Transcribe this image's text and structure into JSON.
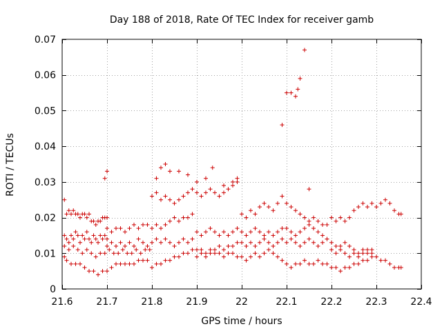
{
  "chart_data": {
    "type": "scatter",
    "title": "Day 188 of 2018, Rate Of TEC Index for receiver gamb",
    "xlabel": "GPS time / hours",
    "ylabel": "ROTI / TECUs",
    "xlim": [
      21.6,
      22.4
    ],
    "ylim": [
      0,
      0.07
    ],
    "xticks": [
      21.6,
      21.7,
      21.8,
      21.9,
      22.0,
      22.1,
      22.2,
      22.3,
      22.4
    ],
    "xtick_labels": [
      "21.6",
      "21.7",
      "21.8",
      "21.9",
      "22",
      "22.1",
      "22.2",
      "22.3",
      "22.4"
    ],
    "yticks": [
      0,
      0.01,
      0.02,
      0.03,
      0.04,
      0.05,
      0.06,
      0.07
    ],
    "ytick_labels": [
      "0",
      "0.01",
      "0.02",
      "0.03",
      "0.04",
      "0.05",
      "0.06",
      "0.07"
    ],
    "grid": true,
    "marker": "+",
    "series": [
      {
        "name": "ROTI",
        "color": "#cc0000",
        "x": [
          21.605,
          21.61,
          21.615,
          21.62,
          21.625,
          21.63,
          21.635,
          21.64,
          21.645,
          21.65,
          21.655,
          21.66,
          21.665,
          21.67,
          21.675,
          21.68,
          21.685,
          21.69,
          21.695,
          21.7,
          21.605,
          21.61,
          21.615,
          21.62,
          21.625,
          21.63,
          21.635,
          21.64,
          21.645,
          21.65,
          21.655,
          21.66,
          21.665,
          21.67,
          21.675,
          21.68,
          21.685,
          21.69,
          21.695,
          21.7,
          21.605,
          21.61,
          21.62,
          21.63,
          21.64,
          21.65,
          21.66,
          21.67,
          21.68,
          21.69,
          21.7,
          21.71,
          21.72,
          21.73,
          21.74,
          21.75,
          21.76,
          21.77,
          21.78,
          21.79,
          21.605,
          21.615,
          21.625,
          21.635,
          21.645,
          21.655,
          21.665,
          21.675,
          21.685,
          21.695,
          21.705,
          21.715,
          21.725,
          21.735,
          21.745,
          21.755,
          21.765,
          21.775,
          21.785,
          21.795,
          21.7,
          21.71,
          21.72,
          21.73,
          21.74,
          21.75,
          21.76,
          21.77,
          21.78,
          21.79,
          21.8,
          21.81,
          21.82,
          21.83,
          21.84,
          21.85,
          21.86,
          21.87,
          21.88,
          21.89,
          21.7,
          21.71,
          21.72,
          21.73,
          21.74,
          21.75,
          21.76,
          21.77,
          21.78,
          21.79,
          21.8,
          21.81,
          21.82,
          21.83,
          21.84,
          21.85,
          21.86,
          21.87,
          21.88,
          21.89,
          21.8,
          21.81,
          21.82,
          21.83,
          21.84,
          21.85,
          21.86,
          21.87,
          21.88,
          21.89,
          21.9,
          21.91,
          21.92,
          21.93,
          21.94,
          21.95,
          21.96,
          21.97,
          21.98,
          21.99,
          21.8,
          21.81,
          21.82,
          21.83,
          21.84,
          21.85,
          21.86,
          21.87,
          21.88,
          21.89,
          21.9,
          21.91,
          21.92,
          21.93,
          21.94,
          21.95,
          21.96,
          21.97,
          21.98,
          21.99,
          21.9,
          21.91,
          21.92,
          21.93,
          21.94,
          21.95,
          21.96,
          21.97,
          21.98,
          21.99,
          22.0,
          22.01,
          22.02,
          22.03,
          22.04,
          22.05,
          22.06,
          22.07,
          22.08,
          22.09,
          21.9,
          21.91,
          21.92,
          21.93,
          21.94,
          21.95,
          21.96,
          21.97,
          21.98,
          21.99,
          22.0,
          22.01,
          22.02,
          22.03,
          22.04,
          22.05,
          22.06,
          22.07,
          22.08,
          22.09,
          22.0,
          22.01,
          22.02,
          22.03,
          22.04,
          22.05,
          22.06,
          22.07,
          22.08,
          22.09,
          22.1,
          22.11,
          22.12,
          22.13,
          22.14,
          22.15,
          22.16,
          22.17,
          22.18,
          22.19,
          22.0,
          22.01,
          22.02,
          22.03,
          22.04,
          22.05,
          22.06,
          22.07,
          22.08,
          22.09,
          22.1,
          22.11,
          22.12,
          22.13,
          22.14,
          22.15,
          22.16,
          22.17,
          22.18,
          22.19,
          22.1,
          22.11,
          22.12,
          22.13,
          22.14,
          22.15,
          22.16,
          22.17,
          22.18,
          22.19,
          22.2,
          22.21,
          22.22,
          22.23,
          22.24,
          22.25,
          22.26,
          22.27,
          22.28,
          22.29,
          22.1,
          22.11,
          22.12,
          22.13,
          22.14,
          22.15,
          22.16,
          22.17,
          22.18,
          22.19,
          22.2,
          22.21,
          22.22,
          22.23,
          22.24,
          22.25,
          22.26,
          22.27,
          22.28,
          22.29,
          22.2,
          22.21,
          22.22,
          22.23,
          22.24,
          22.25,
          22.26,
          22.27,
          22.28,
          22.29,
          22.3,
          22.31,
          22.32,
          22.33,
          22.34,
          22.35,
          22.355,
          22.2,
          22.21,
          22.22,
          22.23,
          22.24,
          22.25,
          22.26,
          22.27,
          22.28,
          22.29,
          22.3,
          22.31,
          22.32,
          22.33,
          22.34,
          22.35,
          22.355,
          21.695,
          21.7,
          21.81,
          21.82,
          21.83,
          21.84,
          21.86,
          21.88,
          21.9,
          21.92,
          21.935,
          21.96,
          21.98,
          21.99,
          22.09,
          22.1,
          22.11,
          22.12,
          22.125,
          22.13,
          22.14,
          22.15
        ],
        "y": [
          0.025,
          0.021,
          0.022,
          0.021,
          0.022,
          0.021,
          0.021,
          0.02,
          0.021,
          0.021,
          0.02,
          0.021,
          0.019,
          0.019,
          0.018,
          0.019,
          0.019,
          0.02,
          0.02,
          0.02,
          0.015,
          0.014,
          0.013,
          0.015,
          0.014,
          0.016,
          0.015,
          0.013,
          0.015,
          0.014,
          0.016,
          0.014,
          0.013,
          0.015,
          0.014,
          0.013,
          0.015,
          0.014,
          0.015,
          0.014,
          0.009,
          0.008,
          0.007,
          0.007,
          0.007,
          0.006,
          0.005,
          0.005,
          0.004,
          0.005,
          0.005,
          0.006,
          0.007,
          0.007,
          0.007,
          0.007,
          0.007,
          0.008,
          0.008,
          0.008,
          0.012,
          0.011,
          0.012,
          0.011,
          0.01,
          0.011,
          0.01,
          0.009,
          0.01,
          0.01,
          0.011,
          0.01,
          0.01,
          0.011,
          0.01,
          0.01,
          0.011,
          0.01,
          0.011,
          0.011,
          0.017,
          0.016,
          0.017,
          0.017,
          0.016,
          0.017,
          0.018,
          0.017,
          0.018,
          0.018,
          0.017,
          0.018,
          0.017,
          0.018,
          0.019,
          0.02,
          0.019,
          0.02,
          0.02,
          0.021,
          0.012,
          0.013,
          0.012,
          0.013,
          0.012,
          0.013,
          0.012,
          0.014,
          0.013,
          0.012,
          0.013,
          0.014,
          0.013,
          0.014,
          0.013,
          0.012,
          0.013,
          0.014,
          0.013,
          0.014,
          0.006,
          0.007,
          0.007,
          0.008,
          0.008,
          0.009,
          0.009,
          0.01,
          0.01,
          0.011,
          0.011,
          0.011,
          0.01,
          0.011,
          0.011,
          0.012,
          0.011,
          0.012,
          0.012,
          0.013,
          0.026,
          0.027,
          0.025,
          0.026,
          0.025,
          0.024,
          0.025,
          0.026,
          0.027,
          0.028,
          0.027,
          0.026,
          0.027,
          0.028,
          0.027,
          0.026,
          0.027,
          0.028,
          0.029,
          0.03,
          0.016,
          0.015,
          0.016,
          0.017,
          0.016,
          0.015,
          0.016,
          0.015,
          0.016,
          0.017,
          0.016,
          0.015,
          0.016,
          0.017,
          0.016,
          0.015,
          0.016,
          0.015,
          0.016,
          0.017,
          0.009,
          0.01,
          0.009,
          0.01,
          0.01,
          0.01,
          0.009,
          0.01,
          0.01,
          0.009,
          0.009,
          0.008,
          0.009,
          0.01,
          0.009,
          0.01,
          0.011,
          0.01,
          0.009,
          0.008,
          0.021,
          0.02,
          0.022,
          0.021,
          0.023,
          0.024,
          0.023,
          0.022,
          0.024,
          0.026,
          0.024,
          0.023,
          0.022,
          0.021,
          0.02,
          0.019,
          0.02,
          0.019,
          0.018,
          0.018,
          0.013,
          0.012,
          0.013,
          0.012,
          0.013,
          0.014,
          0.013,
          0.012,
          0.013,
          0.014,
          0.013,
          0.014,
          0.013,
          0.012,
          0.013,
          0.014,
          0.013,
          0.012,
          0.013,
          0.014,
          0.007,
          0.006,
          0.007,
          0.007,
          0.008,
          0.007,
          0.007,
          0.008,
          0.007,
          0.007,
          0.006,
          0.006,
          0.005,
          0.006,
          0.006,
          0.007,
          0.007,
          0.008,
          0.008,
          0.009,
          0.017,
          0.016,
          0.015,
          0.016,
          0.017,
          0.018,
          0.017,
          0.016,
          0.015,
          0.014,
          0.013,
          0.012,
          0.012,
          0.013,
          0.012,
          0.011,
          0.01,
          0.011,
          0.01,
          0.011,
          0.02,
          0.019,
          0.02,
          0.019,
          0.02,
          0.022,
          0.023,
          0.024,
          0.023,
          0.024,
          0.023,
          0.024,
          0.025,
          0.024,
          0.022,
          0.021,
          0.021,
          0.011,
          0.01,
          0.011,
          0.01,
          0.009,
          0.01,
          0.009,
          0.01,
          0.011,
          0.01,
          0.009,
          0.008,
          0.008,
          0.007,
          0.006,
          0.006,
          0.006,
          0.031,
          0.033,
          0.031,
          0.034,
          0.035,
          0.033,
          0.033,
          0.032,
          0.03,
          0.031,
          0.034,
          0.029,
          0.03,
          0.031,
          0.046,
          0.055,
          0.055,
          0.054,
          0.056,
          0.059,
          0.067,
          0.028
        ]
      }
    ]
  }
}
